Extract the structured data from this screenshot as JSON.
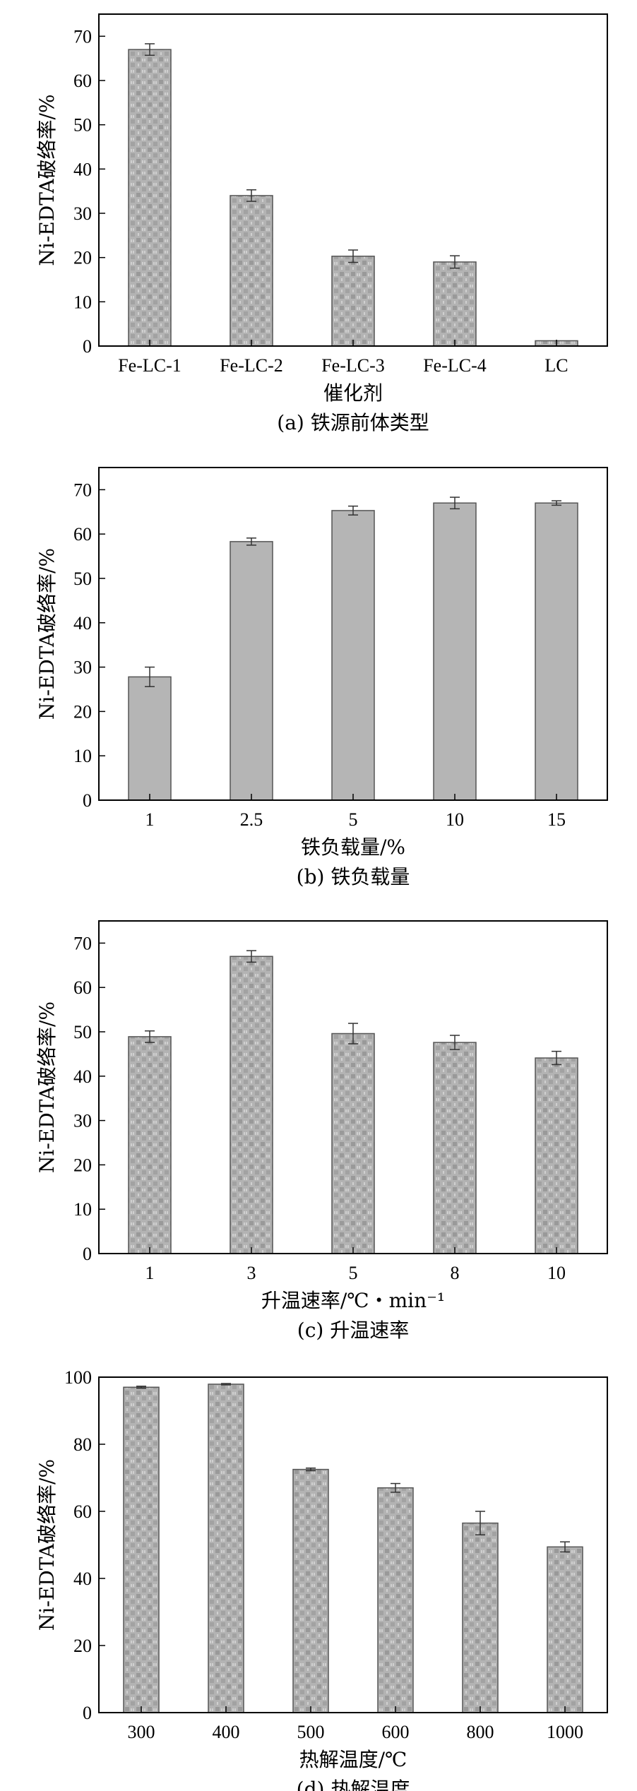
{
  "colors": {
    "bar_fill": "#b5b5b5",
    "bar_pattern": "#8e8e8e",
    "bar_stroke": "#555555",
    "axis": "#000000"
  },
  "chart_data": [
    {
      "type": "bar",
      "caption": "(a) 铁源前体类型",
      "xlabel": "催化剂",
      "ylabel": "Ni-EDTA破络率/%",
      "categories": [
        "Fe-LC-1",
        "Fe-LC-2",
        "Fe-LC-3",
        "Fe-LC-4",
        "LC"
      ],
      "values": [
        67.0,
        34.0,
        20.3,
        19.0,
        1.2
      ],
      "errors": [
        1.3,
        1.3,
        1.4,
        1.4,
        0
      ],
      "ylim": [
        0,
        75
      ],
      "yticks": [
        0,
        10,
        20,
        30,
        40,
        50,
        60,
        70
      ],
      "pattern": "dotted",
      "grid": false
    },
    {
      "type": "bar",
      "caption": "(b) 铁负载量",
      "xlabel": "铁负载量/%",
      "ylabel": "Ni-EDTA破络率/%",
      "categories": [
        "1",
        "2.5",
        "5",
        "10",
        "15"
      ],
      "values": [
        27.8,
        58.3,
        65.3,
        67.0,
        67.0
      ],
      "errors": [
        2.2,
        0.8,
        1.0,
        1.3,
        0.5
      ],
      "ylim": [
        0,
        75
      ],
      "yticks": [
        0,
        10,
        20,
        30,
        40,
        50,
        60,
        70
      ],
      "pattern": "solid",
      "grid": false
    },
    {
      "type": "bar",
      "caption": "(c) 升温速率",
      "xlabel": "升温速率/℃・min⁻¹",
      "ylabel": "Ni-EDTA破络率/%",
      "categories": [
        "1",
        "3",
        "5",
        "8",
        "10"
      ],
      "values": [
        48.9,
        67.0,
        49.6,
        47.6,
        44.1
      ],
      "errors": [
        1.3,
        1.3,
        2.3,
        1.6,
        1.5
      ],
      "ylim": [
        0,
        75
      ],
      "yticks": [
        0,
        10,
        20,
        30,
        40,
        50,
        60,
        70
      ],
      "pattern": "dotted",
      "grid": false
    },
    {
      "type": "bar",
      "caption": "(d) 热解温度",
      "xlabel": "热解温度/℃",
      "ylabel": "Ni-EDTA破络率/%",
      "categories": [
        "300",
        "400",
        "500",
        "600",
        "800",
        "1000"
      ],
      "values": [
        97.0,
        97.9,
        72.5,
        67.0,
        56.5,
        49.4
      ],
      "errors": [
        0.3,
        0.2,
        0.4,
        1.3,
        3.5,
        1.5
      ],
      "ylim": [
        0,
        100
      ],
      "yticks": [
        0,
        20,
        40,
        60,
        80,
        100
      ],
      "pattern": "dotted",
      "grid": false
    }
  ]
}
